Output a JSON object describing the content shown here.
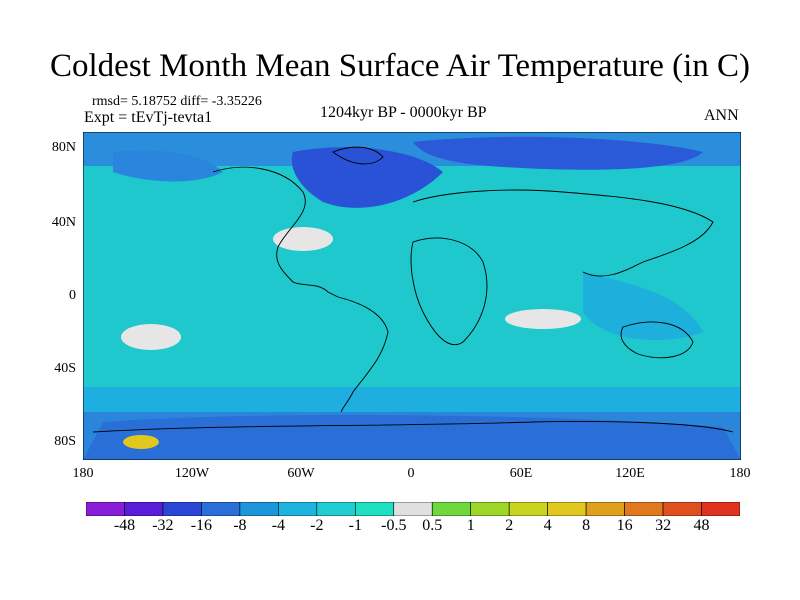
{
  "title": "Coldest Month Mean Surface Air Temperature (in C)",
  "stats": "rmsd= 5.18752 diff= -3.35226",
  "experiment": "Expt = tEvTj-tevta1",
  "period": "1204kyr BP - 0000kyr BP",
  "season": "ANN",
  "lat_labels": [
    "80N",
    "40N",
    "0",
    "40S",
    "80S"
  ],
  "lon_labels": [
    "180",
    "120W",
    "60W",
    "0",
    "60E",
    "120E",
    "180"
  ],
  "colorbar": {
    "colors": [
      "#8a1ed8",
      "#5a1ed8",
      "#2a46d6",
      "#2a6ed8",
      "#1e96dc",
      "#1eb4e0",
      "#1eccd2",
      "#1ee0c0",
      "#e0e0e0",
      "#6ed83c",
      "#9ed628",
      "#c8d41e",
      "#e0c81e",
      "#e0a01e",
      "#e0781e",
      "#e0501e",
      "#e0321e"
    ],
    "labels": [
      "-48",
      "-32",
      "-16",
      "-8",
      "-4",
      "-2",
      "-1",
      "-0.5",
      "0.5",
      "1",
      "2",
      "4",
      "8",
      "16",
      "32",
      "48"
    ]
  }
}
